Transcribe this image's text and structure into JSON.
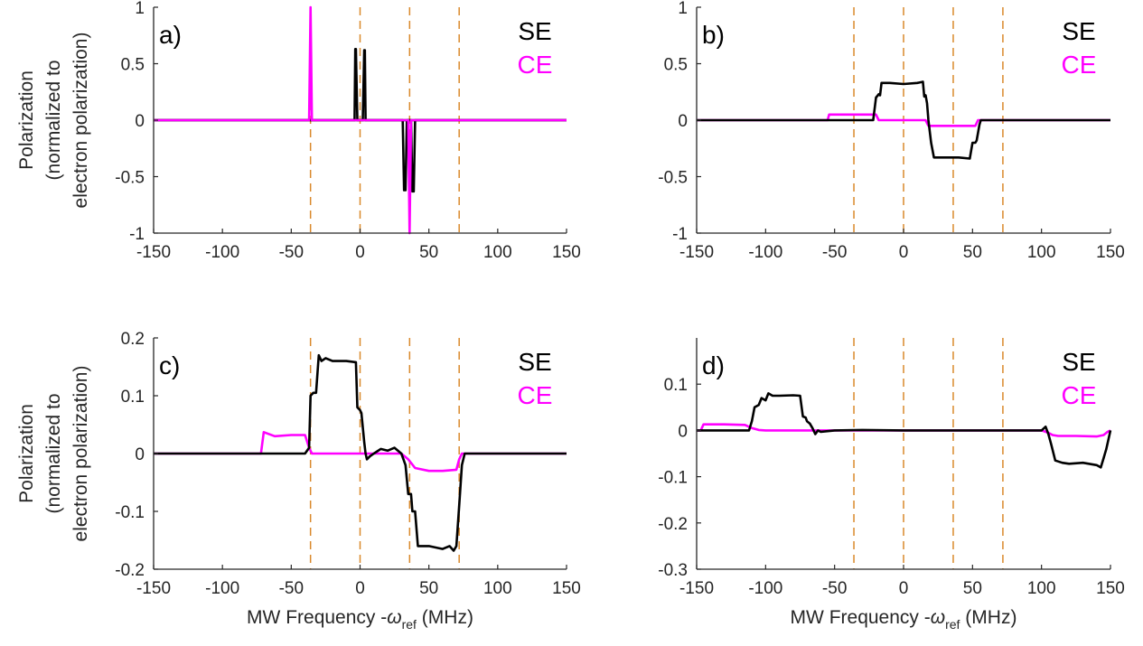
{
  "colors": {
    "se": "#000000",
    "ce": "#ff00ff",
    "vline": "#d9892b",
    "axis": "#262626"
  },
  "ylabel_lines": [
    "Polarization",
    "(normalized to",
    "electron polarization)"
  ],
  "xlabel": {
    "main": "MW Frequency -",
    "omega": "ω",
    "sub": "ref",
    "unit": " (MHz)"
  },
  "chart_data": [
    {
      "type": "line",
      "panel_label": "a)",
      "legend": [
        "SE",
        "CE"
      ],
      "xlim": [
        -150,
        150
      ],
      "ylim": [
        -1,
        1
      ],
      "xticks": [
        -150,
        -100,
        -50,
        0,
        50,
        100,
        150
      ],
      "yticks": [
        -1,
        -0.5,
        0,
        0.5,
        1
      ],
      "ytick_labels": [
        "-1",
        "-0.5",
        "0",
        "0.5",
        "1"
      ],
      "vlines": [
        -36,
        0,
        36,
        72
      ],
      "series": [
        {
          "name": "SE",
          "x": [
            -150,
            -4,
            -3.5,
            -3,
            -2,
            -1.5,
            -1,
            0,
            1,
            1.5,
            2,
            3,
            3.5,
            4,
            150
          ],
          "y": [
            0,
            0,
            0.63,
            0.63,
            0,
            0,
            0,
            0,
            0,
            0,
            0,
            0.62,
            0.62,
            0,
            0
          ]
        },
        {
          "name": "SE",
          "x": [
            -150,
            31,
            32,
            33,
            34,
            35,
            36,
            37,
            38,
            39,
            40,
            150
          ],
          "y": [
            0,
            0,
            -0.62,
            -0.62,
            0,
            0,
            0,
            0,
            -0.63,
            -0.63,
            0,
            0
          ]
        },
        {
          "name": "CE",
          "x": [
            -150,
            -37,
            -36,
            -35,
            35,
            36,
            37,
            150
          ],
          "y": [
            0,
            0,
            1,
            0,
            0,
            -1,
            0,
            0
          ]
        }
      ],
      "ylabel_shown": true,
      "xlabel_shown": false
    },
    {
      "type": "line",
      "panel_label": "b)",
      "legend": [
        "SE",
        "CE"
      ],
      "xlim": [
        -150,
        150
      ],
      "ylim": [
        -1,
        1
      ],
      "xticks": [
        -150,
        -100,
        -50,
        0,
        50,
        100,
        150
      ],
      "yticks": [
        -1,
        -0.5,
        0,
        0.5,
        1
      ],
      "ytick_labels": [
        "-1",
        "-0.5",
        "0",
        "0.5",
        "1"
      ],
      "vlines": [
        -36,
        0,
        36,
        72
      ],
      "series": [
        {
          "name": "CE",
          "x": [
            -150,
            -55,
            -54,
            -20,
            -18,
            16,
            18,
            52,
            54,
            150
          ],
          "y": [
            0,
            0,
            0.05,
            0.05,
            0.0,
            0.0,
            -0.05,
            -0.05,
            0,
            0
          ]
        },
        {
          "name": "SE",
          "x": [
            -150,
            -22,
            -20,
            -18,
            -17,
            -16,
            -10,
            0,
            10,
            14,
            15,
            16,
            17,
            18,
            20,
            22,
            30,
            40,
            48,
            50,
            52,
            53,
            55,
            56,
            150
          ],
          "y": [
            0,
            0,
            0.2,
            0.23,
            0.22,
            0.33,
            0.33,
            0.32,
            0.33,
            0.34,
            0.21,
            0.22,
            0.15,
            0,
            -0.2,
            -0.33,
            -0.33,
            -0.33,
            -0.34,
            -0.2,
            -0.2,
            -0.18,
            -0.04,
            0,
            0
          ]
        }
      ],
      "ylabel_shown": false,
      "xlabel_shown": false
    },
    {
      "type": "line",
      "panel_label": "c)",
      "legend": [
        "SE",
        "CE"
      ],
      "xlim": [
        -150,
        150
      ],
      "ylim": [
        -0.2,
        0.2
      ],
      "xticks": [
        -150,
        -100,
        -50,
        0,
        50,
        100,
        150
      ],
      "yticks": [
        -0.2,
        -0.1,
        0,
        0.1,
        0.2
      ],
      "ytick_labels": [
        "-0.2",
        "-0.1",
        "0",
        "0.1",
        "0.2"
      ],
      "vlines": [
        -36,
        0,
        36,
        72
      ],
      "series": [
        {
          "name": "CE",
          "x": [
            -150,
            -72,
            -70,
            -62,
            -50,
            -40,
            -37,
            -35,
            0,
            10,
            30,
            35,
            40,
            50,
            60,
            70,
            72,
            74,
            150
          ],
          "y": [
            0,
            0,
            0.037,
            0.03,
            0.032,
            0.032,
            0.01,
            0,
            0,
            0,
            0,
            -0.01,
            -0.025,
            -0.03,
            -0.03,
            -0.028,
            -0.01,
            0,
            0
          ]
        },
        {
          "name": "SE",
          "x": [
            -150,
            -40,
            -37,
            -36,
            -34,
            -32,
            -30,
            -28,
            -25,
            -20,
            -10,
            -3,
            -2,
            0,
            1,
            3,
            4,
            5,
            7,
            10,
            15,
            20,
            25,
            30,
            33,
            35,
            37,
            38,
            40,
            42,
            50,
            60,
            65,
            68,
            70,
            72,
            74,
            76,
            150
          ],
          "y": [
            0,
            0,
            0.01,
            0.1,
            0.105,
            0.105,
            0.17,
            0.16,
            0.165,
            0.16,
            0.16,
            0.158,
            0.08,
            0.075,
            0.07,
            0.02,
            0.0,
            -0.01,
            -0.005,
            0,
            0.008,
            0.005,
            0.01,
            0.0,
            -0.02,
            -0.07,
            -0.07,
            -0.1,
            -0.1,
            -0.16,
            -0.16,
            -0.165,
            -0.16,
            -0.168,
            -0.16,
            -0.09,
            -0.02,
            0,
            0
          ]
        }
      ],
      "ylabel_shown": true,
      "xlabel_shown": true
    },
    {
      "type": "line",
      "panel_label": "d)",
      "legend": [
        "SE",
        "CE"
      ],
      "xlim": [
        -150,
        150
      ],
      "ylim": [
        -0.3,
        0.2
      ],
      "xticks": [
        -150,
        -100,
        -50,
        0,
        50,
        100,
        150
      ],
      "yticks": [
        -0.3,
        -0.2,
        -0.1,
        0,
        0.1
      ],
      "ytick_labels": [
        "-0.3",
        "-0.2",
        "-0.1",
        "0",
        "0.1"
      ],
      "vlines": [
        -36,
        0,
        36,
        72
      ],
      "series": [
        {
          "name": "CE",
          "x": [
            -150,
            -147,
            -145,
            -130,
            -115,
            -110,
            -105,
            -100,
            100,
            105,
            108,
            112,
            125,
            140,
            145,
            148,
            150
          ],
          "y": [
            0,
            0,
            0.013,
            0.013,
            0.012,
            0.005,
            0.001,
            0,
            0,
            -0.005,
            -0.01,
            -0.012,
            -0.012,
            -0.013,
            -0.01,
            -0.003,
            0
          ]
        },
        {
          "name": "SE",
          "x": [
            -150,
            -112,
            -110,
            -108,
            -105,
            -103,
            -100,
            -98,
            -95,
            -90,
            -80,
            -75,
            -73,
            -71,
            -70,
            -68,
            -66,
            -64,
            -62,
            -60,
            -50,
            -30,
            0,
            50,
            100,
            103,
            105,
            107,
            110,
            115,
            120,
            130,
            140,
            143,
            145,
            147,
            150
          ],
          "y": [
            0,
            0,
            0.02,
            0.05,
            0.055,
            0.07,
            0.065,
            0.08,
            0.075,
            0.075,
            0.076,
            0.075,
            0.03,
            0.028,
            0.02,
            0.015,
            0.005,
            -0.008,
            0.0,
            -0.003,
            0,
            0.001,
            0,
            0,
            0.0,
            0.008,
            -0.008,
            -0.03,
            -0.065,
            -0.07,
            -0.072,
            -0.07,
            -0.075,
            -0.08,
            -0.06,
            -0.04,
            0
          ]
        }
      ],
      "ylabel_shown": false,
      "xlabel_shown": true
    }
  ]
}
